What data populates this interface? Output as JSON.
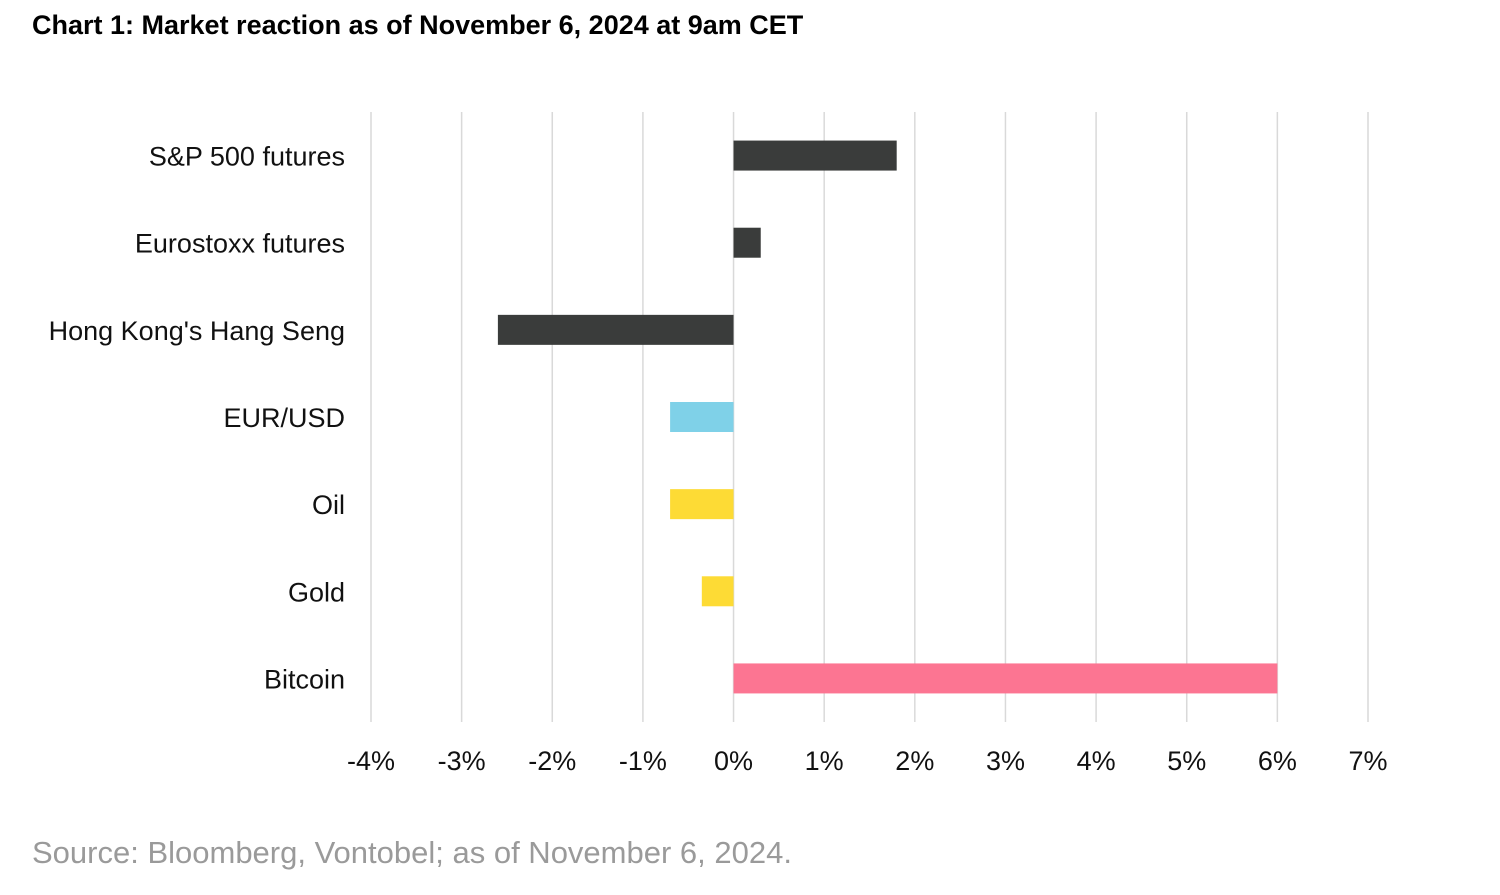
{
  "title": "Chart 1: Market reaction as of November 6, 2024 at 9am CET",
  "source": "Source: Bloomberg, Vontobel; as of November 6, 2024.",
  "chart_data": {
    "type": "bar",
    "orientation": "horizontal",
    "categories": [
      "S&P 500 futures",
      "Eurostoxx futures",
      "Hong Kong's Hang Seng",
      "EUR/USD",
      "Oil",
      "Gold",
      "Bitcoin"
    ],
    "values": [
      1.8,
      0.3,
      -2.6,
      -0.7,
      -0.7,
      -0.35,
      6.0
    ],
    "colors": [
      "#3a3c3b",
      "#3a3c3b",
      "#3a3c3b",
      "#7fd1e8",
      "#fddb35",
      "#fddb35",
      "#fc7592"
    ],
    "xlim": [
      -4,
      7
    ],
    "xticks": [
      -4,
      -3,
      -2,
      -1,
      0,
      1,
      2,
      3,
      4,
      5,
      6,
      7
    ],
    "xtick_labels": [
      "-4%",
      "-3%",
      "-2%",
      "-1%",
      "0%",
      "1%",
      "2%",
      "3%",
      "4%",
      "5%",
      "6%",
      "7%"
    ],
    "grid": true,
    "gridline_color": "#d9d9d9",
    "legend": "none"
  }
}
